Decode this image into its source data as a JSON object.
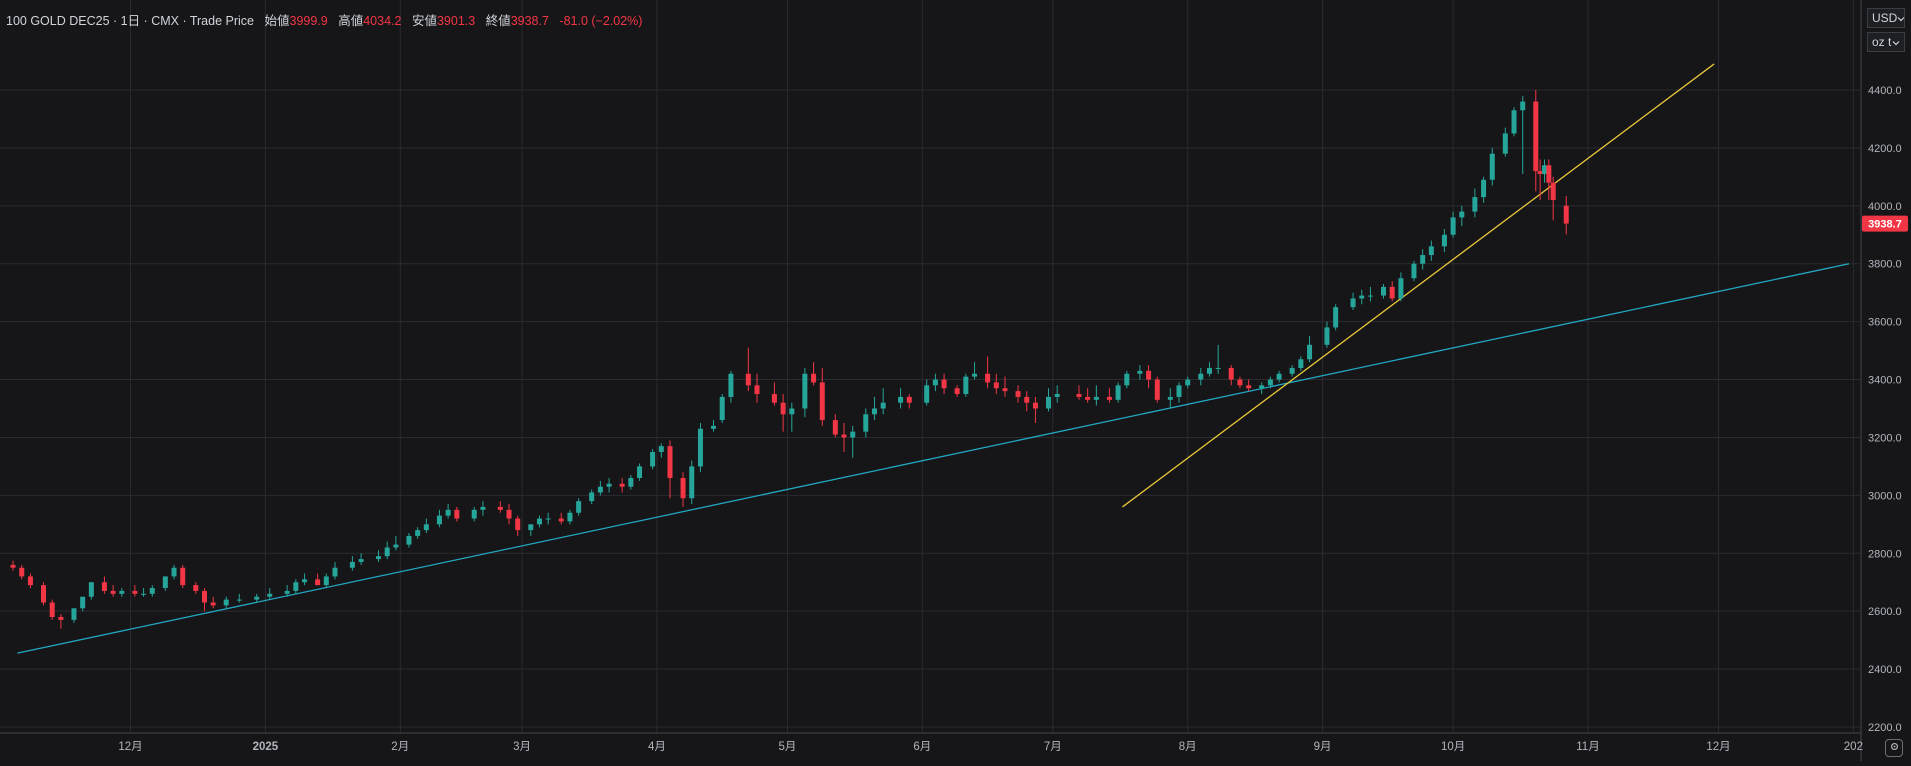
{
  "legend": {
    "symbol": "100 GOLD DEC25 · 1日 · CMX · Trade Price",
    "open_label": "始値",
    "open_value": "3999.9",
    "high_label": "高値",
    "high_value": "4034.2",
    "low_label": "安値",
    "low_value": "3901.3",
    "close_label": "終値",
    "close_value": "3938.7",
    "change": "-81.0 (−2.02%)"
  },
  "controls": {
    "currency": "USD",
    "unit": "oz t",
    "dropdown_icon": "chevron-down-icon",
    "settings_icon": "gear-icon"
  },
  "colors": {
    "background": "#161618",
    "grid": "#2a2b30",
    "up": "#26a69a",
    "down": "#f23645",
    "trend_long": "#22a8c4",
    "trend_short": "#e8c73a",
    "axis_text": "#b2b5be",
    "last_price_bg": "#f23645"
  },
  "chart_data": {
    "type": "candlestick",
    "title": "",
    "xlabel": "",
    "ylabel": "",
    "ylim": [
      2200,
      4700
    ],
    "y_ticks": [
      "2200.0",
      "2400.0",
      "2600.0",
      "2800.0",
      "3000.0",
      "3200.0",
      "3400.0",
      "3600.0",
      "3800.0",
      "4000.0",
      "4200.0",
      "4400.0"
    ],
    "x_ticks": [
      "12月",
      "2025",
      "2月",
      "3月",
      "4月",
      "5月",
      "6月",
      "7月",
      "8月",
      "9月",
      "10月",
      "11月",
      "12月",
      "202"
    ],
    "x_tick_dates": [
      "2024-12-01",
      "2025-01-01",
      "2025-02-01",
      "2025-03-01",
      "2025-04-01",
      "2025-05-01",
      "2025-06-01",
      "2025-07-01",
      "2025-08-01",
      "2025-09-01",
      "2025-10-01",
      "2025-11-01",
      "2025-12-01",
      "2026-01-01"
    ],
    "last_price": "3938.7",
    "grid": true,
    "ohlc": {
      "dates": [
        "2024-11-04",
        "2024-11-06",
        "2024-11-08",
        "2024-11-11",
        "2024-11-13",
        "2024-11-15",
        "2024-11-18",
        "2024-11-20",
        "2024-11-22",
        "2024-11-25",
        "2024-11-27",
        "2024-11-29",
        "2024-12-02",
        "2024-12-04",
        "2024-12-06",
        "2024-12-09",
        "2024-12-11",
        "2024-12-13",
        "2024-12-16",
        "2024-12-18",
        "2024-12-20",
        "2024-12-23",
        "2024-12-26",
        "2024-12-30",
        "2025-01-02",
        "2025-01-06",
        "2025-01-08",
        "2025-01-10",
        "2025-01-13",
        "2025-01-15",
        "2025-01-17",
        "2025-01-21",
        "2025-01-23",
        "2025-01-27",
        "2025-01-29",
        "2025-01-31",
        "2025-02-03",
        "2025-02-05",
        "2025-02-07",
        "2025-02-10",
        "2025-02-12",
        "2025-02-14",
        "2025-02-18",
        "2025-02-20",
        "2025-02-24",
        "2025-02-26",
        "2025-02-28",
        "2025-03-03",
        "2025-03-05",
        "2025-03-07",
        "2025-03-10",
        "2025-03-12",
        "2025-03-14",
        "2025-03-17",
        "2025-03-19",
        "2025-03-21",
        "2025-03-24",
        "2025-03-26",
        "2025-03-28",
        "2025-03-31",
        "2025-04-02",
        "2025-04-04",
        "2025-04-07",
        "2025-04-09",
        "2025-04-11",
        "2025-04-14",
        "2025-04-16",
        "2025-04-18",
        "2025-04-22",
        "2025-04-24",
        "2025-04-28",
        "2025-04-30",
        "2025-05-02",
        "2025-05-05",
        "2025-05-07",
        "2025-05-09",
        "2025-05-12",
        "2025-05-14",
        "2025-05-16",
        "2025-05-19",
        "2025-05-21",
        "2025-05-23",
        "2025-05-27",
        "2025-05-29",
        "2025-06-02",
        "2025-06-04",
        "2025-06-06",
        "2025-06-09",
        "2025-06-11",
        "2025-06-13",
        "2025-06-16",
        "2025-06-18",
        "2025-06-20",
        "2025-06-23",
        "2025-06-25",
        "2025-06-27",
        "2025-06-30",
        "2025-07-02",
        "2025-07-07",
        "2025-07-09",
        "2025-07-11",
        "2025-07-14",
        "2025-07-16",
        "2025-07-18",
        "2025-07-21",
        "2025-07-23",
        "2025-07-25",
        "2025-07-28",
        "2025-07-30",
        "2025-08-01",
        "2025-08-04",
        "2025-08-06",
        "2025-08-08",
        "2025-08-11",
        "2025-08-13",
        "2025-08-15",
        "2025-08-18",
        "2025-08-20",
        "2025-08-22",
        "2025-08-25",
        "2025-08-27",
        "2025-08-29",
        "2025-09-02",
        "2025-09-04",
        "2025-09-08",
        "2025-09-10",
        "2025-09-12",
        "2025-09-15",
        "2025-09-17",
        "2025-09-19",
        "2025-09-22",
        "2025-09-24",
        "2025-09-26",
        "2025-09-29",
        "2025-10-01",
        "2025-10-03",
        "2025-10-06",
        "2025-10-08",
        "2025-10-10",
        "2025-10-13",
        "2025-10-15",
        "2025-10-17",
        "2025-10-20",
        "2025-10-21",
        "2025-10-22",
        "2025-10-23",
        "2025-10-24",
        "2025-10-27"
      ],
      "open": [
        2760,
        2750,
        2720,
        2690,
        2630,
        2580,
        2570,
        2610,
        2650,
        2700,
        2670,
        2660,
        2670,
        2660,
        2660,
        2680,
        2720,
        2750,
        2690,
        2670,
        2630,
        2620,
        2640,
        2640,
        2650,
        2660,
        2670,
        2700,
        2710,
        2690,
        2720,
        2750,
        2770,
        2780,
        2790,
        2820,
        2830,
        2860,
        2880,
        2900,
        2930,
        2950,
        2920,
        2950,
        2960,
        2950,
        2920,
        2880,
        2900,
        2920,
        2920,
        2910,
        2940,
        2980,
        3010,
        3030,
        3040,
        3030,
        3060,
        3100,
        3150,
        3170,
        3060,
        2990,
        3100,
        3230,
        3260,
        3340,
        3420,
        3380,
        3350,
        3320,
        3280,
        3300,
        3420,
        3390,
        3260,
        3210,
        3200,
        3220,
        3280,
        3300,
        3320,
        3340,
        3320,
        3380,
        3400,
        3370,
        3350,
        3410,
        3420,
        3390,
        3370,
        3360,
        3340,
        3320,
        3300,
        3340,
        3350,
        3340,
        3330,
        3340,
        3330,
        3380,
        3420,
        3430,
        3400,
        3330,
        3340,
        3380,
        3400,
        3420,
        3440,
        3440,
        3400,
        3380,
        3370,
        3380,
        3400,
        3420,
        3440,
        3470,
        3520,
        3580,
        3650,
        3680,
        3690,
        3690,
        3720,
        3680,
        3750,
        3800,
        3830,
        3860,
        3900,
        3960,
        3980,
        4030,
        4090,
        4180,
        4250,
        4330,
        4360,
        4120,
        4110,
        4140,
        4080,
        4000
      ],
      "high": [
        2775,
        2760,
        2730,
        2700,
        2640,
        2590,
        2600,
        2640,
        2700,
        2720,
        2690,
        2680,
        2690,
        2680,
        2690,
        2720,
        2760,
        2760,
        2700,
        2680,
        2650,
        2650,
        2660,
        2660,
        2680,
        2690,
        2710,
        2730,
        2730,
        2730,
        2770,
        2790,
        2800,
        2810,
        2840,
        2860,
        2870,
        2890,
        2920,
        2950,
        2970,
        2960,
        2960,
        2980,
        2980,
        2970,
        2930,
        2900,
        2930,
        2940,
        2940,
        2950,
        2990,
        3020,
        3050,
        3060,
        3060,
        3070,
        3110,
        3160,
        3180,
        3190,
        3080,
        3120,
        3250,
        3260,
        3350,
        3430,
        3510,
        3420,
        3390,
        3350,
        3320,
        3440,
        3460,
        3440,
        3280,
        3250,
        3240,
        3300,
        3340,
        3370,
        3370,
        3350,
        3400,
        3420,
        3420,
        3380,
        3420,
        3460,
        3480,
        3420,
        3410,
        3380,
        3360,
        3340,
        3370,
        3380,
        3380,
        3370,
        3380,
        3370,
        3390,
        3430,
        3450,
        3450,
        3410,
        3370,
        3390,
        3410,
        3440,
        3460,
        3520,
        3450,
        3410,
        3400,
        3390,
        3410,
        3430,
        3450,
        3480,
        3550,
        3600,
        3660,
        3700,
        3710,
        3720,
        3730,
        3740,
        3770,
        3810,
        3850,
        3880,
        3920,
        3980,
        4000,
        4060,
        4100,
        4200,
        4270,
        4340,
        4380,
        4400,
        4160,
        4160,
        4160,
        4100,
        4034
      ],
      "low": [
        2740,
        2710,
        2680,
        2620,
        2570,
        2540,
        2560,
        2600,
        2640,
        2660,
        2650,
        2650,
        2650,
        2650,
        2650,
        2670,
        2710,
        2680,
        2660,
        2600,
        2610,
        2610,
        2630,
        2630,
        2640,
        2650,
        2660,
        2690,
        2690,
        2680,
        2710,
        2740,
        2760,
        2770,
        2780,
        2810,
        2820,
        2850,
        2870,
        2890,
        2920,
        2910,
        2910,
        2930,
        2940,
        2900,
        2860,
        2860,
        2890,
        2900,
        2900,
        2900,
        2930,
        2970,
        3000,
        3010,
        3010,
        3020,
        3050,
        3090,
        3130,
        2990,
        2960,
        2970,
        3080,
        3220,
        3250,
        3320,
        3360,
        3320,
        3310,
        3220,
        3220,
        3270,
        3380,
        3240,
        3200,
        3150,
        3130,
        3200,
        3260,
        3280,
        3300,
        3300,
        3310,
        3360,
        3350,
        3340,
        3340,
        3400,
        3370,
        3350,
        3340,
        3320,
        3290,
        3250,
        3290,
        3320,
        3330,
        3320,
        3310,
        3320,
        3320,
        3370,
        3400,
        3370,
        3320,
        3300,
        3320,
        3370,
        3380,
        3410,
        3420,
        3380,
        3370,
        3360,
        3350,
        3370,
        3390,
        3410,
        3430,
        3460,
        3510,
        3570,
        3640,
        3660,
        3670,
        3680,
        3670,
        3670,
        3740,
        3780,
        3810,
        3840,
        3890,
        3930,
        3960,
        4010,
        4070,
        4170,
        4240,
        4110,
        4050,
        4020,
        4080,
        4020,
        3950,
        3901
      ],
      "close": [
        2750,
        2720,
        2690,
        2630,
        2580,
        2570,
        2610,
        2650,
        2700,
        2670,
        2660,
        2670,
        2660,
        2660,
        2680,
        2720,
        2750,
        2690,
        2670,
        2630,
        2620,
        2640,
        2640,
        2650,
        2660,
        2670,
        2700,
        2710,
        2690,
        2720,
        2750,
        2770,
        2780,
        2790,
        2820,
        2830,
        2860,
        2880,
        2900,
        2930,
        2950,
        2920,
        2950,
        2960,
        2950,
        2920,
        2880,
        2900,
        2920,
        2920,
        2910,
        2940,
        2980,
        3010,
        3030,
        3040,
        3030,
        3060,
        3100,
        3150,
        3170,
        3060,
        2990,
        3100,
        3230,
        3240,
        3340,
        3420,
        3380,
        3350,
        3320,
        3280,
        3300,
        3420,
        3390,
        3260,
        3210,
        3200,
        3220,
        3280,
        3300,
        3320,
        3340,
        3320,
        3380,
        3400,
        3370,
        3350,
        3410,
        3420,
        3390,
        3370,
        3360,
        3340,
        3320,
        3300,
        3340,
        3350,
        3340,
        3330,
        3340,
        3330,
        3380,
        3420,
        3430,
        3400,
        3330,
        3340,
        3380,
        3400,
        3420,
        3440,
        3440,
        3400,
        3380,
        3370,
        3380,
        3400,
        3420,
        3440,
        3470,
        3520,
        3580,
        3650,
        3680,
        3690,
        3690,
        3720,
        3680,
        3750,
        3800,
        3830,
        3860,
        3900,
        3960,
        3980,
        4030,
        4090,
        4180,
        4250,
        4330,
        4360,
        4120,
        4110,
        4140,
        4080,
        4020,
        3938.7
      ]
    },
    "trendlines": [
      {
        "color_key": "trend_long",
        "points": [
          [
            "2024-11-05",
            2455
          ],
          [
            "2025-12-31",
            3800
          ]
        ]
      },
      {
        "color_key": "trend_short",
        "points": [
          [
            "2025-07-17",
            2960
          ],
          [
            "2025-11-30",
            4490
          ]
        ]
      }
    ]
  }
}
